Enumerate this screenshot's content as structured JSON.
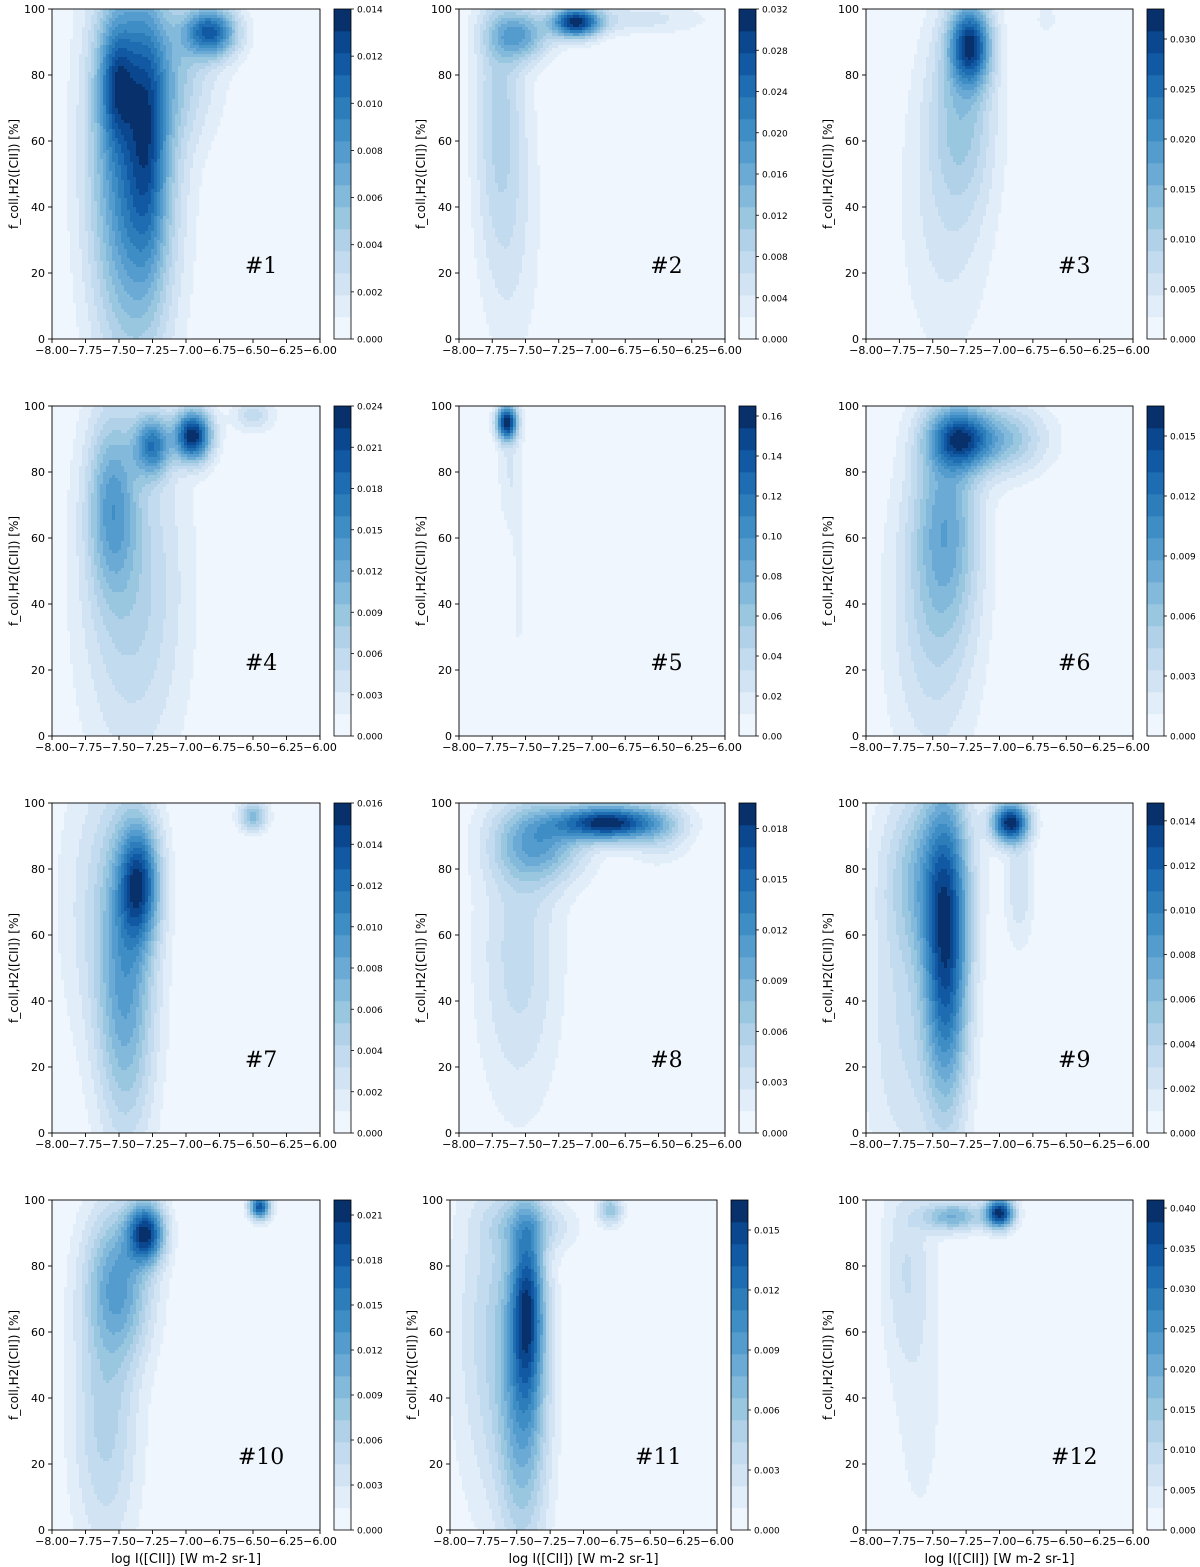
{
  "figure": {
    "xlabel": "log I([CII]) [W m-2 sr-1]",
    "ylabel": "f_coll,H2([CII]) [%]"
  },
  "colors": {
    "scale": [
      "#f0f6fd",
      "#e1edf8",
      "#d2e4f3",
      "#c3dbef",
      "#b0d1e8",
      "#9ac7e0",
      "#83b9db",
      "#6aaad4",
      "#549cce",
      "#3e8dc4",
      "#2d7dbb",
      "#1e6cb2",
      "#1259a4",
      "#0a478f",
      "#08306b"
    ]
  },
  "chart_data": [
    {
      "panel": "#1",
      "type": "heatmap",
      "xlim": [
        -8.0,
        -6.0
      ],
      "ylim": [
        0,
        100
      ],
      "xticks": [
        "−8.00",
        "−7.75",
        "−7.50",
        "−7.25",
        "−7.00",
        "−6.75",
        "−6.50",
        "−6.25",
        "−6.00"
      ],
      "yticks": [
        "0",
        "20",
        "40",
        "60",
        "80",
        "100"
      ],
      "colorbar": {
        "max": 0.014,
        "ticks": [
          "0.000",
          "0.002",
          "0.004",
          "0.006",
          "0.008",
          "0.010",
          "0.012",
          "0.014"
        ]
      },
      "blobs": [
        {
          "x": -7.4,
          "y": 55,
          "sx": 0.2,
          "sy": 38,
          "w": 0.55
        },
        {
          "x": -7.52,
          "y": 78,
          "sx": 0.09,
          "sy": 12,
          "w": 0.35
        },
        {
          "x": -7.28,
          "y": 60,
          "sx": 0.09,
          "sy": 25,
          "w": 0.25
        },
        {
          "x": -6.82,
          "y": 93,
          "sx": 0.13,
          "sy": 5,
          "w": 0.6
        },
        {
          "x": -7.1,
          "y": 80,
          "sx": 0.22,
          "sy": 14,
          "w": 0.15
        }
      ]
    },
    {
      "panel": "#2",
      "type": "heatmap",
      "xlim": [
        -8.0,
        -6.0
      ],
      "ylim": [
        0,
        100
      ],
      "xticks": [
        "−8.00",
        "−7.75",
        "−7.50",
        "−7.25",
        "−7.00",
        "−6.75",
        "−6.50",
        "−6.25",
        "−6.00"
      ],
      "yticks": [
        "0",
        "20",
        "40",
        "60",
        "80",
        "100"
      ],
      "colorbar": {
        "max": 0.032,
        "ticks": [
          "0.000",
          "0.004",
          "0.008",
          "0.012",
          "0.016",
          "0.020",
          "0.024",
          "0.028",
          "0.032"
        ]
      },
      "blobs": [
        {
          "x": -7.12,
          "y": 96,
          "sx": 0.12,
          "sy": 3,
          "w": 1.0
        },
        {
          "x": -7.55,
          "y": 92,
          "sx": 0.15,
          "sy": 5,
          "w": 0.45
        },
        {
          "x": -7.7,
          "y": 70,
          "sx": 0.12,
          "sy": 30,
          "w": 0.2
        },
        {
          "x": -6.7,
          "y": 97,
          "sx": 0.35,
          "sy": 3,
          "w": 0.12
        },
        {
          "x": -7.6,
          "y": 35,
          "sx": 0.15,
          "sy": 30,
          "w": 0.08
        }
      ]
    },
    {
      "panel": "#3",
      "type": "heatmap",
      "xlim": [
        -8.0,
        -6.0
      ],
      "ylim": [
        0,
        100
      ],
      "xticks": [
        "−8.00",
        "−7.75",
        "−7.50",
        "−7.25",
        "−7.00",
        "−6.75",
        "−6.50",
        "−6.25",
        "−6.00"
      ],
      "yticks": [
        "0",
        "20",
        "40",
        "60",
        "80",
        "100"
      ],
      "colorbar": {
        "max": 0.033,
        "ticks": [
          "0.000",
          "0.005",
          "0.010",
          "0.015",
          "0.020",
          "0.025",
          "0.030"
        ]
      },
      "blobs": [
        {
          "x": -7.22,
          "y": 89,
          "sx": 0.1,
          "sy": 8,
          "w": 1.0
        },
        {
          "x": -7.28,
          "y": 70,
          "sx": 0.16,
          "sy": 20,
          "w": 0.3
        },
        {
          "x": -7.4,
          "y": 40,
          "sx": 0.22,
          "sy": 30,
          "w": 0.12
        },
        {
          "x": -6.65,
          "y": 97,
          "sx": 0.05,
          "sy": 3,
          "w": 0.08
        }
      ]
    },
    {
      "panel": "#4",
      "type": "heatmap",
      "xlim": [
        -8.0,
        -6.0
      ],
      "ylim": [
        0,
        100
      ],
      "xticks": [
        "−8.00",
        "−7.75",
        "−7.50",
        "−7.25",
        "−7.00",
        "−6.75",
        "−6.50",
        "−6.25",
        "−6.00"
      ],
      "yticks": [
        "0",
        "20",
        "40",
        "60",
        "80",
        "100"
      ],
      "colorbar": {
        "max": 0.024,
        "ticks": [
          "0.000",
          "0.003",
          "0.006",
          "0.009",
          "0.012",
          "0.015",
          "0.018",
          "0.021",
          "0.024"
        ]
      },
      "blobs": [
        {
          "x": -6.95,
          "y": 91,
          "sx": 0.09,
          "sy": 5,
          "w": 0.9
        },
        {
          "x": -7.25,
          "y": 88,
          "sx": 0.09,
          "sy": 6,
          "w": 0.55
        },
        {
          "x": -7.55,
          "y": 70,
          "sx": 0.12,
          "sy": 18,
          "w": 0.35
        },
        {
          "x": -7.4,
          "y": 45,
          "sx": 0.25,
          "sy": 35,
          "w": 0.2
        },
        {
          "x": -6.5,
          "y": 97,
          "sx": 0.1,
          "sy": 3,
          "w": 0.15
        }
      ]
    },
    {
      "panel": "#5",
      "type": "heatmap",
      "xlim": [
        -8.0,
        -6.0
      ],
      "ylim": [
        0,
        100
      ],
      "xticks": [
        "−8.00",
        "−7.75",
        "−7.50",
        "−7.25",
        "−7.00",
        "−6.75",
        "−6.50",
        "−6.25",
        "−6.00"
      ],
      "yticks": [
        "0",
        "20",
        "40",
        "60",
        "80",
        "100"
      ],
      "colorbar": {
        "max": 0.165,
        "ticks": [
          "0.00",
          "0.02",
          "0.04",
          "0.06",
          "0.08",
          "0.10",
          "0.12",
          "0.14",
          "0.16"
        ]
      },
      "blobs": [
        {
          "x": -7.64,
          "y": 95,
          "sx": 0.05,
          "sy": 3.5,
          "w": 1.0
        },
        {
          "x": -7.62,
          "y": 80,
          "sx": 0.06,
          "sy": 12,
          "w": 0.08
        },
        {
          "x": -7.55,
          "y": 45,
          "sx": 0.04,
          "sy": 30,
          "w": 0.04
        }
      ]
    },
    {
      "panel": "#6",
      "type": "heatmap",
      "xlim": [
        -8.0,
        -6.0
      ],
      "ylim": [
        0,
        100
      ],
      "xticks": [
        "−8.00",
        "−7.75",
        "−7.50",
        "−7.25",
        "−7.00",
        "−6.75",
        "−6.50",
        "−6.25",
        "−6.00"
      ],
      "yticks": [
        "0",
        "20",
        "40",
        "60",
        "80",
        "100"
      ],
      "colorbar": {
        "max": 0.0165,
        "ticks": [
          "0.000",
          "0.003",
          "0.006",
          "0.009",
          "0.012",
          "0.015"
        ]
      },
      "blobs": [
        {
          "x": -7.3,
          "y": 90,
          "sx": 0.15,
          "sy": 6,
          "w": 0.85
        },
        {
          "x": -7.4,
          "y": 65,
          "sx": 0.16,
          "sy": 22,
          "w": 0.45
        },
        {
          "x": -7.0,
          "y": 90,
          "sx": 0.22,
          "sy": 7,
          "w": 0.4
        },
        {
          "x": -7.5,
          "y": 35,
          "sx": 0.22,
          "sy": 30,
          "w": 0.2
        }
      ]
    },
    {
      "panel": "#7",
      "type": "heatmap",
      "xlim": [
        -8.0,
        -6.0
      ],
      "ylim": [
        0,
        100
      ],
      "xticks": [
        "−8.00",
        "−7.75",
        "−7.50",
        "−7.25",
        "−7.00",
        "−6.75",
        "−6.50",
        "−6.25",
        "−6.00"
      ],
      "yticks": [
        "0",
        "20",
        "40",
        "60",
        "80",
        "100"
      ],
      "colorbar": {
        "max": 0.016,
        "ticks": [
          "0.000",
          "0.002",
          "0.004",
          "0.006",
          "0.008",
          "0.010",
          "0.012",
          "0.014",
          "0.016"
        ]
      },
      "blobs": [
        {
          "x": -7.35,
          "y": 76,
          "sx": 0.1,
          "sy": 12,
          "w": 0.85
        },
        {
          "x": -7.45,
          "y": 45,
          "sx": 0.14,
          "sy": 30,
          "w": 0.5
        },
        {
          "x": -6.5,
          "y": 96,
          "sx": 0.07,
          "sy": 3,
          "w": 0.4
        },
        {
          "x": -7.6,
          "y": 70,
          "sx": 0.22,
          "sy": 30,
          "w": 0.15
        }
      ]
    },
    {
      "panel": "#8",
      "type": "heatmap",
      "xlim": [
        -8.0,
        -6.0
      ],
      "ylim": [
        0,
        100
      ],
      "xticks": [
        "−8.00",
        "−7.75",
        "−7.50",
        "−7.25",
        "−7.00",
        "−6.75",
        "−6.50",
        "−6.25",
        "−6.00"
      ],
      "yticks": [
        "0",
        "20",
        "40",
        "60",
        "80",
        "100"
      ],
      "colorbar": {
        "max": 0.0195,
        "ticks": [
          "0.000",
          "0.003",
          "0.006",
          "0.009",
          "0.012",
          "0.015",
          "0.018"
        ]
      },
      "blobs": [
        {
          "x": -6.88,
          "y": 94,
          "sx": 0.25,
          "sy": 3.5,
          "w": 0.9
        },
        {
          "x": -7.4,
          "y": 88,
          "sx": 0.22,
          "sy": 8,
          "w": 0.4
        },
        {
          "x": -7.55,
          "y": 55,
          "sx": 0.2,
          "sy": 30,
          "w": 0.15
        },
        {
          "x": -6.5,
          "y": 92,
          "sx": 0.15,
          "sy": 6,
          "w": 0.15
        }
      ]
    },
    {
      "panel": "#9",
      "type": "heatmap",
      "xlim": [
        -8.0,
        -6.0
      ],
      "ylim": [
        0,
        100
      ],
      "xticks": [
        "−8.00",
        "−7.75",
        "−7.50",
        "−7.25",
        "−7.00",
        "−6.75",
        "−6.50",
        "−6.25",
        "−6.00"
      ],
      "yticks": [
        "0",
        "20",
        "40",
        "60",
        "80",
        "100"
      ],
      "colorbar": {
        "max": 0.0148,
        "ticks": [
          "0.000",
          "0.002",
          "0.004",
          "0.006",
          "0.008",
          "0.010",
          "0.012",
          "0.014"
        ]
      },
      "blobs": [
        {
          "x": -6.92,
          "y": 94,
          "sx": 0.09,
          "sy": 4,
          "w": 0.9
        },
        {
          "x": -7.4,
          "y": 55,
          "sx": 0.11,
          "sy": 30,
          "w": 0.75
        },
        {
          "x": -7.55,
          "y": 78,
          "sx": 0.2,
          "sy": 18,
          "w": 0.3
        },
        {
          "x": -6.85,
          "y": 75,
          "sx": 0.07,
          "sy": 12,
          "w": 0.12
        },
        {
          "x": -7.7,
          "y": 30,
          "sx": 0.2,
          "sy": 30,
          "w": 0.12
        }
      ]
    },
    {
      "panel": "#10",
      "type": "heatmap",
      "xlim": [
        -8.0,
        -6.0
      ],
      "ylim": [
        0,
        100
      ],
      "xticks": [
        "−8.00",
        "−7.75",
        "−7.50",
        "−7.25",
        "−7.00",
        "−6.75",
        "−6.50",
        "−6.25",
        "−6.00"
      ],
      "yticks": [
        "0",
        "20",
        "40",
        "60",
        "80",
        "100"
      ],
      "colorbar": {
        "max": 0.022,
        "ticks": [
          "0.000",
          "0.003",
          "0.006",
          "0.009",
          "0.012",
          "0.015",
          "0.018",
          "0.021"
        ]
      },
      "blobs": [
        {
          "x": -7.3,
          "y": 90,
          "sx": 0.09,
          "sy": 6,
          "w": 0.8
        },
        {
          "x": -6.45,
          "y": 98,
          "sx": 0.05,
          "sy": 2.5,
          "w": 0.75
        },
        {
          "x": -7.5,
          "y": 75,
          "sx": 0.16,
          "sy": 15,
          "w": 0.4
        },
        {
          "x": -7.6,
          "y": 35,
          "sx": 0.16,
          "sy": 28,
          "w": 0.2
        }
      ]
    },
    {
      "panel": "#11",
      "type": "heatmap",
      "xlim": [
        -8.0,
        -6.0
      ],
      "ylim": [
        0,
        100
      ],
      "xticks": [
        "−8.00",
        "−7.75",
        "−7.50",
        "−7.25",
        "−7.00",
        "−6.75",
        "−6.50",
        "−6.25",
        "−6.00"
      ],
      "yticks": [
        "0",
        "20",
        "40",
        "60",
        "80",
        "100"
      ],
      "colorbar": {
        "max": 0.0165,
        "ticks": [
          "0.000",
          "0.003",
          "0.006",
          "0.009",
          "0.012",
          "0.015"
        ]
      },
      "blobs": [
        {
          "x": -7.42,
          "y": 68,
          "sx": 0.08,
          "sy": 18,
          "w": 0.85
        },
        {
          "x": -7.45,
          "y": 40,
          "sx": 0.12,
          "sy": 30,
          "w": 0.55
        },
        {
          "x": -6.8,
          "y": 97,
          "sx": 0.06,
          "sy": 3,
          "w": 0.4
        },
        {
          "x": -7.65,
          "y": 60,
          "sx": 0.2,
          "sy": 35,
          "w": 0.25
        },
        {
          "x": -7.4,
          "y": 92,
          "sx": 0.2,
          "sy": 5,
          "w": 0.25
        }
      ]
    },
    {
      "panel": "#12",
      "type": "heatmap",
      "xlim": [
        -8.0,
        -6.0
      ],
      "ylim": [
        0,
        100
      ],
      "xticks": [
        "−8.00",
        "−7.75",
        "−7.50",
        "−7.25",
        "−7.00",
        "−6.75",
        "−6.50",
        "−6.25",
        "−6.00"
      ],
      "yticks": [
        "0",
        "20",
        "40",
        "60",
        "80",
        "100"
      ],
      "colorbar": {
        "max": 0.041,
        "ticks": [
          "0.000",
          "0.005",
          "0.010",
          "0.015",
          "0.020",
          "0.025",
          "0.030",
          "0.035",
          "0.040"
        ]
      },
      "blobs": [
        {
          "x": -7.0,
          "y": 96,
          "sx": 0.07,
          "sy": 3,
          "w": 1.0
        },
        {
          "x": -7.35,
          "y": 95,
          "sx": 0.15,
          "sy": 3,
          "w": 0.4
        },
        {
          "x": -7.7,
          "y": 80,
          "sx": 0.12,
          "sy": 20,
          "w": 0.12
        },
        {
          "x": -7.6,
          "y": 40,
          "sx": 0.15,
          "sy": 35,
          "w": 0.05
        }
      ]
    }
  ]
}
